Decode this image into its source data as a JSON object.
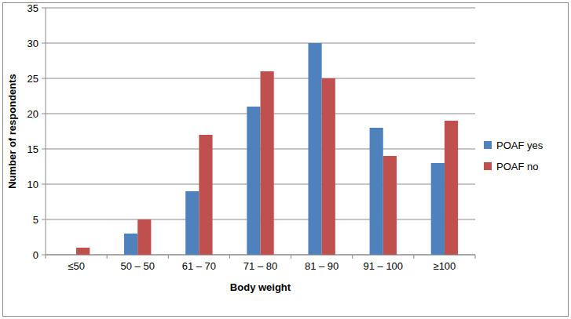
{
  "chart_data": {
    "type": "bar",
    "x_label": "Body weight",
    "y_label": "Number of respondents",
    "categories": [
      "≤50",
      "50 – 50",
      "61 – 70",
      "71 – 80",
      "81 – 90",
      "91 – 100",
      "≥100"
    ],
    "series": [
      {
        "name": "POAF yes",
        "color": "#4f81bd",
        "values": [
          0,
          3,
          9,
          21,
          30,
          18,
          13
        ]
      },
      {
        "name": "POAF no",
        "color": "#c0504d",
        "values": [
          1,
          5,
          17,
          26,
          25,
          14,
          19
        ]
      }
    ],
    "ylim": [
      0,
      35
    ],
    "yticks": [
      0,
      5,
      10,
      15,
      20,
      25,
      30,
      35
    ],
    "grid": true,
    "legend": "right"
  }
}
